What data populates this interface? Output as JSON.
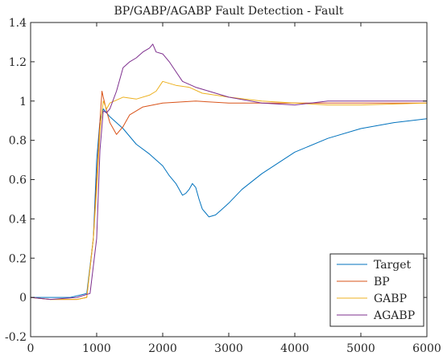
{
  "chart_data": {
    "type": "line",
    "title": "BP/GABP/AGABP Fault Detection - Fault",
    "xlabel": "",
    "ylabel": "",
    "xlim": [
      0,
      6000
    ],
    "ylim": [
      -0.2,
      1.4
    ],
    "x_ticks": [
      0,
      1000,
      2000,
      3000,
      4000,
      5000,
      6000
    ],
    "y_ticks": [
      -0.2,
      0,
      0.2,
      0.4,
      0.6,
      0.8,
      1,
      1.2,
      1.4
    ],
    "x_tick_labels": [
      "0",
      "1000",
      "2000",
      "3000",
      "4000",
      "5000",
      "6000"
    ],
    "y_tick_labels": [
      "-0.2",
      "0",
      "0.2",
      "0.4",
      "0.6",
      "0.8",
      "1",
      "1.2",
      "1.4"
    ],
    "grid": false,
    "legend_position": "bottom-right",
    "series": [
      {
        "name": "Target",
        "color": "#0072BD",
        "x": [
          0,
          300,
          600,
          850,
          950,
          1000,
          1050,
          1100,
          1200,
          1400,
          1600,
          1800,
          2000,
          2100,
          2200,
          2300,
          2350,
          2400,
          2450,
          2500,
          2550,
          2600,
          2650,
          2700,
          2800,
          2900,
          3000,
          3200,
          3500,
          4000,
          4500,
          5000,
          5500,
          6000
        ],
        "y": [
          0,
          0,
          0,
          0.02,
          0.3,
          0.7,
          0.9,
          0.96,
          0.92,
          0.86,
          0.78,
          0.73,
          0.67,
          0.62,
          0.58,
          0.52,
          0.53,
          0.55,
          0.58,
          0.56,
          0.5,
          0.45,
          0.43,
          0.41,
          0.42,
          0.45,
          0.48,
          0.55,
          0.63,
          0.74,
          0.81,
          0.86,
          0.89,
          0.91
        ]
      },
      {
        "name": "BP",
        "color": "#D95319",
        "x": [
          0,
          300,
          700,
          850,
          950,
          1000,
          1050,
          1080,
          1100,
          1150,
          1200,
          1300,
          1400,
          1500,
          1700,
          2000,
          2500,
          3000,
          4000,
          5000,
          6000
        ],
        "y": [
          0,
          -0.01,
          -0.01,
          0,
          0.3,
          0.6,
          0.9,
          1.05,
          1.02,
          0.95,
          0.89,
          0.83,
          0.87,
          0.93,
          0.97,
          0.99,
          1.0,
          0.99,
          0.99,
          0.99,
          0.99
        ]
      },
      {
        "name": "GABP",
        "color": "#EDB120",
        "x": [
          0,
          300,
          700,
          850,
          950,
          1000,
          1050,
          1100,
          1150,
          1200,
          1400,
          1600,
          1800,
          1900,
          2000,
          2200,
          2400,
          2600,
          3000,
          3500,
          4000,
          4500,
          5000,
          6000
        ],
        "y": [
          0,
          -0.01,
          -0.01,
          0,
          0.3,
          0.55,
          0.85,
          1.0,
          0.96,
          0.99,
          1.02,
          1.01,
          1.03,
          1.05,
          1.1,
          1.08,
          1.07,
          1.04,
          1.02,
          1.0,
          0.99,
          0.98,
          0.98,
          0.99
        ]
      },
      {
        "name": "AGABP",
        "color": "#7E2F8E",
        "x": [
          0,
          300,
          700,
          900,
          1000,
          1050,
          1100,
          1150,
          1200,
          1300,
          1400,
          1500,
          1600,
          1700,
          1800,
          1850,
          1900,
          2000,
          2100,
          2200,
          2300,
          2500,
          2700,
          3000,
          3500,
          4000,
          4500,
          5000,
          5500,
          6000
        ],
        "y": [
          0,
          -0.01,
          0,
          0.02,
          0.3,
          0.75,
          0.95,
          0.94,
          0.96,
          1.05,
          1.17,
          1.2,
          1.22,
          1.25,
          1.27,
          1.29,
          1.25,
          1.24,
          1.2,
          1.15,
          1.1,
          1.07,
          1.05,
          1.02,
          0.99,
          0.98,
          1.0,
          1.0,
          1.0,
          1.0
        ]
      }
    ]
  }
}
